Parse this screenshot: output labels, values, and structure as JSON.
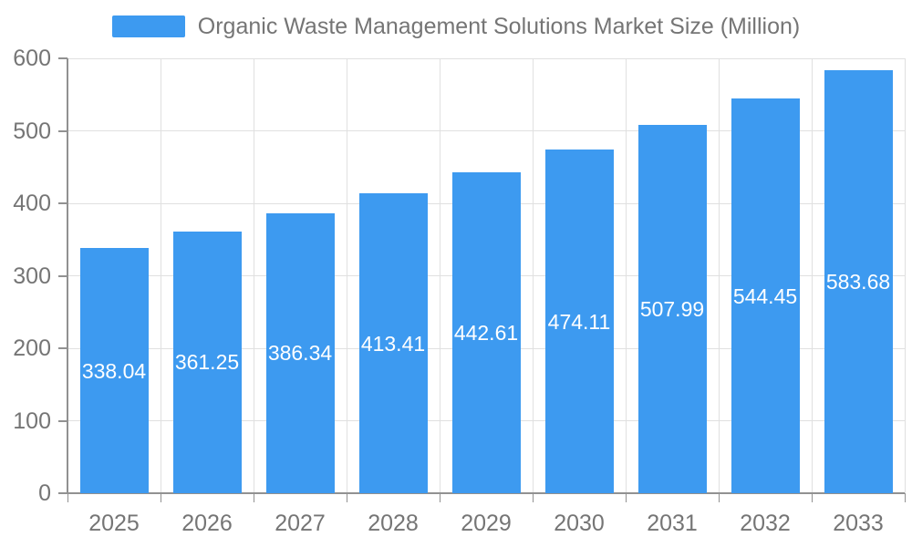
{
  "legend": {
    "label": "Organic Waste Management Solutions Market Size (Million)"
  },
  "colors": {
    "bar": "#3D9AF0",
    "axis_line": "#919191",
    "grid_line": "#E0E0E0",
    "tick_text": "#757575",
    "legend_text": "#757575",
    "value_label": "#FFFFFF",
    "background": "#FFFFFF"
  },
  "chart_data": {
    "type": "bar",
    "title": "Organic Waste Management Solutions Market Size (Million)",
    "series_name": "Organic Waste Management Solutions Market Size (Million)",
    "categories": [
      "2025",
      "2026",
      "2027",
      "2028",
      "2029",
      "2030",
      "2031",
      "2032",
      "2033"
    ],
    "values": [
      338.04,
      361.25,
      386.34,
      413.41,
      442.61,
      474.11,
      507.99,
      544.45,
      583.68
    ],
    "xlabel": "",
    "ylabel": "",
    "ylim": [
      0,
      600
    ],
    "ytick_step": 100,
    "ytick_labels": [
      "0",
      "100",
      "200",
      "300",
      "400",
      "500",
      "600"
    ],
    "grid": true,
    "legend_position": "top-center",
    "value_labels": "inside-center",
    "bar_color": "#3D9AF0"
  }
}
